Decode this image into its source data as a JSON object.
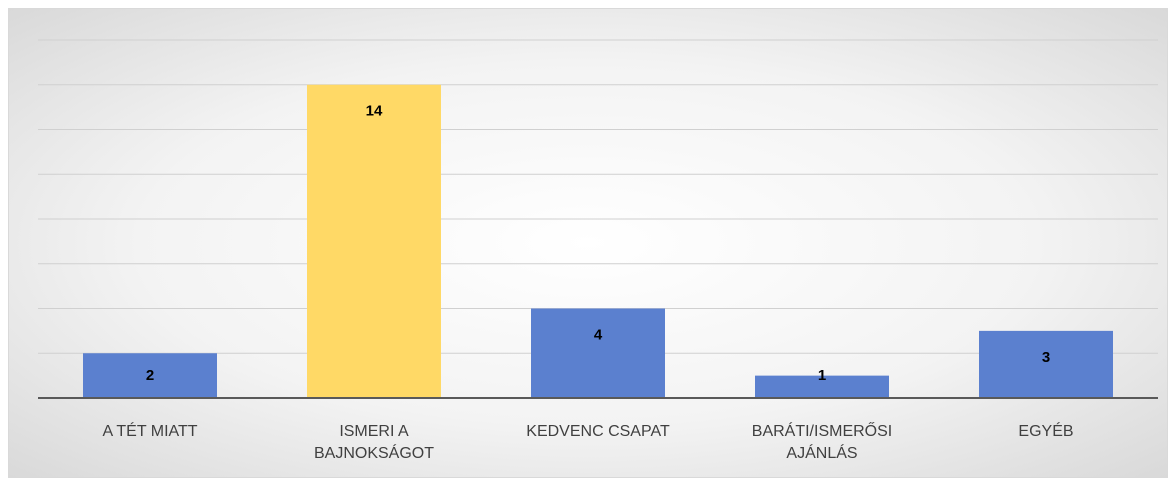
{
  "chart_data": {
    "type": "bar",
    "categories": [
      "A TÉT MIATT",
      "ISMERI A BAJNOKSÁGOT",
      "KEDVENC CSAPAT",
      "BARÁTI/ISMERŐSI AJÁNLÁS",
      "EGYÉB"
    ],
    "values": [
      2,
      14,
      4,
      1,
      3
    ],
    "colors": [
      "#5b80cf",
      "#ffd966",
      "#5b80cf",
      "#5b80cf",
      "#5b80cf"
    ],
    "ylim": [
      0,
      16
    ],
    "yticks": [
      0,
      2,
      4,
      6,
      8,
      10,
      12,
      14,
      16
    ],
    "grid": true
  }
}
